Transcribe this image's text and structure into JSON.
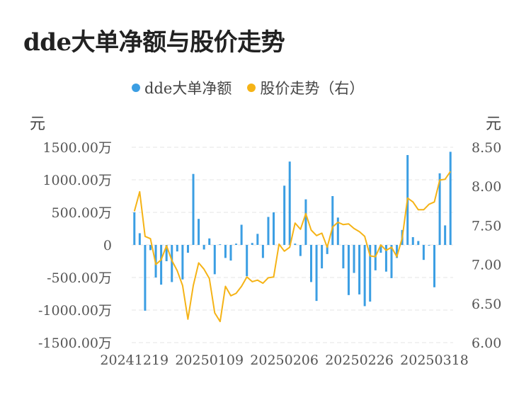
{
  "title": "dde大单净额与股价走势",
  "legend": {
    "bar_label": "dde大单净额",
    "line_label": "股价走势（右）"
  },
  "units": {
    "left": "元",
    "right": "元"
  },
  "colors": {
    "bar": "#3b9ee3",
    "line": "#f5b316",
    "grid": "#e6e6e6",
    "title": "#222222"
  },
  "chart_data": {
    "type": "bar+line",
    "x_tick_labels": [
      "20241219",
      "20250109",
      "20250206",
      "20250226",
      "20250318"
    ],
    "x_tick_index": [
      0,
      14,
      28,
      42,
      56
    ],
    "left_axis": {
      "ticks": [
        "1500.00万",
        "1000.00万",
        "500.00万",
        "0",
        "-500.00万",
        "-1000.00万",
        "-1500.00万"
      ],
      "ylim": [
        -1500,
        1500
      ],
      "unit": "万元"
    },
    "right_axis": {
      "ticks": [
        "8.50",
        "8.00",
        "7.50",
        "7.00",
        "6.50",
        "6.00"
      ],
      "ylim": [
        6.0,
        8.5
      ]
    },
    "series": [
      {
        "name": "dde大单净额",
        "axis": "left",
        "type": "bar",
        "values": [
          500,
          180,
          -1010,
          -80,
          -500,
          -610,
          -250,
          -570,
          -100,
          -530,
          -120,
          1090,
          400,
          -70,
          100,
          -450,
          10,
          -200,
          -240,
          20,
          310,
          -480,
          30,
          170,
          -200,
          430,
          500,
          0,
          910,
          1280,
          20,
          -170,
          700,
          -570,
          -860,
          -360,
          -140,
          750,
          420,
          -360,
          -770,
          -430,
          -760,
          -940,
          -870,
          -390,
          -120,
          -410,
          -510,
          -200,
          230,
          1380,
          120,
          60,
          -230,
          -10,
          -650,
          1100,
          300,
          1430
        ]
      },
      {
        "name": "股价走势（右）",
        "axis": "right",
        "type": "line",
        "values": [
          7.68,
          7.93,
          7.36,
          7.33,
          7.0,
          7.06,
          7.24,
          7.05,
          6.92,
          6.73,
          6.3,
          6.73,
          7.02,
          6.94,
          6.82,
          6.38,
          6.27,
          6.72,
          6.6,
          6.63,
          6.72,
          6.84,
          6.78,
          6.8,
          6.76,
          6.83,
          6.84,
          7.26,
          7.17,
          7.22,
          7.53,
          7.45,
          7.65,
          7.44,
          7.37,
          7.4,
          7.22,
          7.48,
          7.54,
          7.51,
          7.52,
          7.46,
          7.42,
          7.36,
          7.11,
          7.1,
          7.25,
          7.18,
          7.22,
          7.1,
          7.34,
          7.85,
          7.8,
          7.7,
          7.7,
          7.77,
          7.8,
          8.08,
          8.09,
          8.19
        ]
      }
    ],
    "grid": true
  }
}
